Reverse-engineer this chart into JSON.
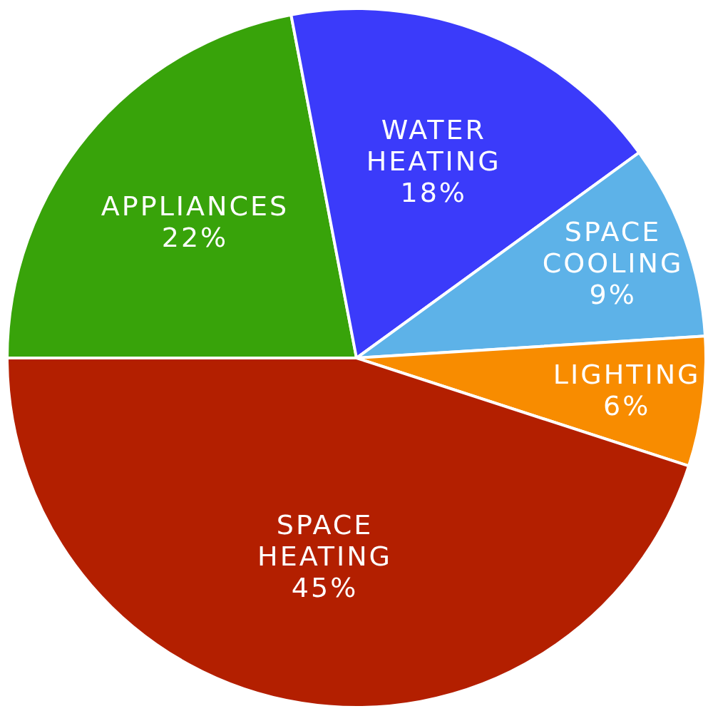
{
  "chart_data": {
    "type": "pie",
    "categories": [
      "APPLIANCES",
      "WATER HEATING",
      "SPACE COOLING",
      "LIGHTING",
      "SPACE HEATING"
    ],
    "values": [
      22,
      18,
      9,
      6,
      45
    ],
    "value_labels": [
      "22%",
      "18%",
      "9%",
      "6%",
      "45%"
    ],
    "colors": [
      "#38a30a",
      "#3b3bfa",
      "#5db2e8",
      "#f88c00",
      "#b31f00"
    ],
    "legend": false
  }
}
